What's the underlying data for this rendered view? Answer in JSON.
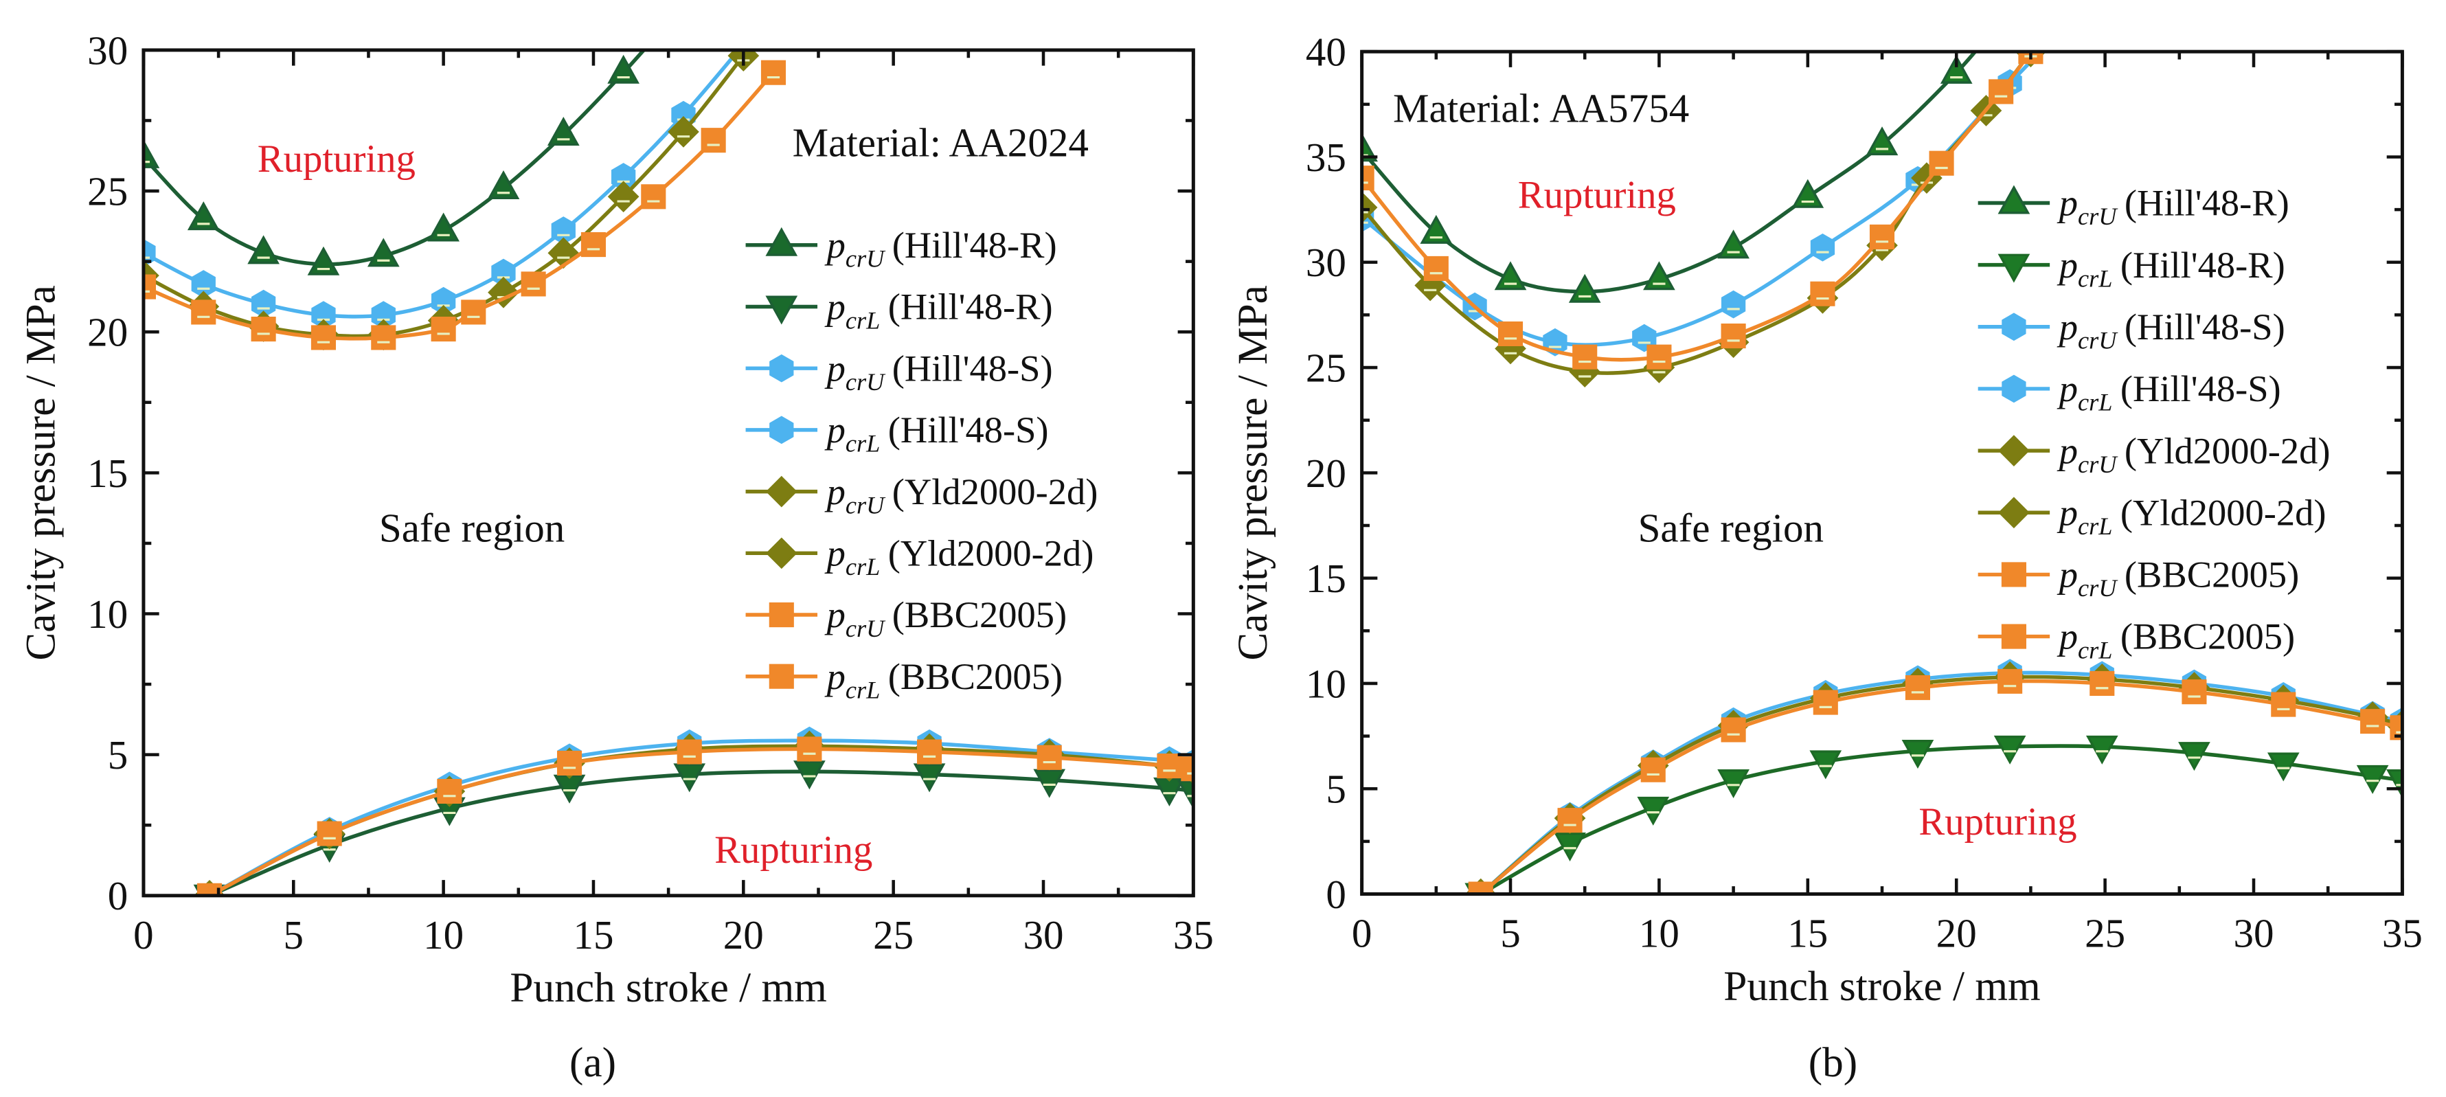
{
  "chart_data": [
    {
      "type": "line",
      "panel_label": "(a)",
      "material_note": "Material: AA2024",
      "xlabel": "Punch stroke / mm",
      "ylabel": "Cavity pressure / MPa",
      "xlim": [
        0,
        35
      ],
      "ylim": [
        0,
        30
      ],
      "xticks": [
        0,
        5,
        10,
        15,
        20,
        25,
        30,
        35
      ],
      "yticks": [
        0,
        5,
        10,
        15,
        20,
        25,
        30
      ],
      "annotations": [
        "Rupturing",
        "Safe region",
        "Rupturing"
      ],
      "legend_position": "right",
      "series": [
        {
          "name": "Hill'48-R upper",
          "sym": "p",
          "sub": "crU",
          "label": "(Hill'48-R)",
          "color": "#1d5e34",
          "fill": "#1a6a2c",
          "marker": "tri-up",
          "x": [
            0,
            2,
            4,
            6,
            8,
            10,
            12,
            14,
            16,
            18
          ],
          "y": [
            26.2,
            24.0,
            22.8,
            22.4,
            22.7,
            23.6,
            25.1,
            27.0,
            29.2,
            31.6
          ]
        },
        {
          "name": "Hill'48-R lower",
          "sym": "p",
          "sub": "crL",
          "label": "(Hill'48-R)",
          "color": "#1d5e34",
          "fill": "#1a6a2c",
          "marker": "tri-down",
          "x": [
            2.2,
            6.2,
            10.2,
            14.2,
            18.2,
            22.2,
            26.2,
            30.2,
            34.2,
            35
          ],
          "y": [
            0,
            1.8,
            3.1,
            3.9,
            4.3,
            4.4,
            4.3,
            4.1,
            3.8,
            3.7
          ]
        },
        {
          "name": "Hill'48-S upper",
          "sym": "p",
          "sub": "crU",
          "label": "(Hill'48-S)",
          "color": "#4db3ef",
          "fill": "#4db3ef",
          "marker": "hex",
          "x": [
            0,
            2,
            4,
            6,
            8,
            10,
            12,
            14,
            16,
            18,
            20
          ],
          "y": [
            22.8,
            21.7,
            21.0,
            20.6,
            20.6,
            21.1,
            22.1,
            23.6,
            25.5,
            27.7,
            30.2
          ]
        },
        {
          "name": "Hill'48-S lower",
          "sym": "p",
          "sub": "crL",
          "label": "(Hill'48-S)",
          "color": "#4db3ef",
          "fill": "#4db3ef",
          "marker": "hex",
          "x": [
            2.2,
            6.2,
            10.2,
            14.2,
            18.2,
            22.2,
            26.2,
            30.2,
            34.2,
            35
          ],
          "y": [
            0,
            2.3,
            3.9,
            4.9,
            5.4,
            5.5,
            5.4,
            5.1,
            4.8,
            4.7
          ]
        },
        {
          "name": "Yld2000-2d upper",
          "sym": "p",
          "sub": "crU",
          "label": "(Yld2000-2d)",
          "color": "#7d7d12",
          "fill": "#7d7d12",
          "marker": "diamond",
          "x": [
            0,
            2,
            4,
            6,
            8,
            10,
            12,
            14,
            16,
            18,
            20
          ],
          "y": [
            22.0,
            20.9,
            20.2,
            19.9,
            19.9,
            20.4,
            21.4,
            22.8,
            24.8,
            27.1,
            29.8
          ]
        },
        {
          "name": "Yld2000-2d lower",
          "sym": "p",
          "sub": "crL",
          "label": "(Yld2000-2d)",
          "color": "#7d7d12",
          "fill": "#7d7d12",
          "marker": "diamond",
          "x": [
            2.2,
            6.2,
            10.2,
            14.2,
            18.2,
            22.2,
            26.2,
            30.2,
            34.2,
            35
          ],
          "y": [
            0,
            2.2,
            3.7,
            4.7,
            5.2,
            5.3,
            5.2,
            5.0,
            4.6,
            4.5
          ]
        },
        {
          "name": "BBC2005 upper",
          "sym": "p",
          "sub": "crU",
          "label": "(BBC2005)",
          "color": "#f0882a",
          "fill": "#f0882a",
          "marker": "square",
          "x": [
            0,
            2,
            4,
            6,
            8,
            10,
            11,
            13,
            15,
            17,
            19,
            21
          ],
          "y": [
            21.6,
            20.7,
            20.1,
            19.8,
            19.8,
            20.1,
            20.7,
            21.7,
            23.1,
            24.8,
            26.8,
            29.2
          ]
        },
        {
          "name": "BBC2005 lower",
          "sym": "p",
          "sub": "crL",
          "label": "(BBC2005)",
          "color": "#f0882a",
          "fill": "#f0882a",
          "marker": "square",
          "x": [
            2.2,
            6.2,
            10.2,
            14.2,
            18.2,
            22.2,
            26.2,
            30.2,
            34.2,
            35
          ],
          "y": [
            0,
            2.2,
            3.7,
            4.7,
            5.1,
            5.2,
            5.1,
            4.9,
            4.6,
            4.5
          ]
        }
      ]
    },
    {
      "type": "line",
      "panel_label": "(b)",
      "material_note": "Material: AA5754",
      "xlabel": "Punch stroke / mm",
      "ylabel": "Cavity pressure / MPa",
      "xlim": [
        0,
        35
      ],
      "ylim": [
        0,
        40
      ],
      "xticks": [
        0,
        5,
        10,
        15,
        20,
        25,
        30,
        35
      ],
      "yticks": [
        0,
        5,
        10,
        15,
        20,
        25,
        30,
        35,
        40
      ],
      "annotations": [
        "Rupturing",
        "Safe region",
        "Rupturing"
      ],
      "legend_position": "right",
      "series": [
        {
          "name": "Hill'48-R upper",
          "sym": "p",
          "sub": "crU",
          "label": "(Hill'48-R)",
          "color": "#1d5e34",
          "fill": "#1d7a26",
          "marker": "tri-up",
          "x": [
            0,
            2.5,
            5,
            7.5,
            10,
            12.5,
            15,
            17.5,
            20,
            21.5
          ],
          "y": [
            35.3,
            31.4,
            29.2,
            28.6,
            29.2,
            30.7,
            33.1,
            35.6,
            39.0,
            41.5
          ]
        },
        {
          "name": "Hill'48-R lower",
          "sym": "p",
          "sub": "crL",
          "label": "(Hill'48-R)",
          "color": "#1d6a26",
          "fill": "#1d7a26",
          "marker": "tri-down",
          "x": [
            4,
            7,
            9.8,
            12.5,
            15.6,
            18.7,
            21.8,
            24.9,
            28,
            31,
            34,
            35
          ],
          "y": [
            0,
            2.4,
            4.1,
            5.4,
            6.3,
            6.8,
            7.0,
            7.0,
            6.7,
            6.2,
            5.6,
            5.4
          ]
        },
        {
          "name": "Hill'48-S upper",
          "sym": "p",
          "sub": "crU",
          "label": "(Hill'48-S)",
          "color": "#4db3ef",
          "fill": "#4db3ef",
          "marker": "hex",
          "x": [
            0,
            3.8,
            6.5,
            9.5,
            12.5,
            15.5,
            18.7,
            21.8,
            23.5
          ],
          "y": [
            32.1,
            27.9,
            26.2,
            26.4,
            28.0,
            30.7,
            33.9,
            38.5,
            41.0
          ]
        },
        {
          "name": "Hill'48-S lower",
          "sym": "p",
          "sub": "crL",
          "label": "(Hill'48-S)",
          "color": "#4db3ef",
          "fill": "#4db3ef",
          "marker": "hex",
          "x": [
            4,
            7,
            9.8,
            12.5,
            15.6,
            18.7,
            21.8,
            24.9,
            28,
            31,
            34,
            35
          ],
          "y": [
            0,
            3.7,
            6.2,
            8.2,
            9.5,
            10.2,
            10.5,
            10.4,
            10.0,
            9.4,
            8.5,
            8.2
          ]
        },
        {
          "name": "Yld2000-2d upper",
          "sym": "p",
          "sub": "crU",
          "label": "(Yld2000-2d)",
          "color": "#7d7d12",
          "fill": "#7d7d12",
          "marker": "diamond",
          "x": [
            0,
            2.3,
            5,
            7.5,
            10,
            12.5,
            15.5,
            17.5,
            19,
            21,
            22.5
          ],
          "y": [
            32.6,
            28.9,
            25.9,
            24.8,
            25.0,
            26.2,
            28.3,
            30.8,
            34.0,
            37.2,
            40.0
          ]
        },
        {
          "name": "Yld2000-2d lower",
          "sym": "p",
          "sub": "crL",
          "label": "(Yld2000-2d)",
          "color": "#7d7d12",
          "fill": "#7d7d12",
          "marker": "diamond",
          "x": [
            4,
            7,
            9.8,
            12.5,
            15.6,
            18.7,
            21.8,
            24.9,
            28,
            31,
            34,
            35
          ],
          "y": [
            0,
            3.6,
            6.1,
            8.0,
            9.3,
            10.0,
            10.3,
            10.2,
            9.8,
            9.2,
            8.4,
            8.0
          ]
        },
        {
          "name": "BBC2005 upper",
          "sym": "p",
          "sub": "crU",
          "label": "(BBC2005)",
          "color": "#f0882a",
          "fill": "#f0882a",
          "marker": "square",
          "x": [
            0,
            2.5,
            5,
            7.5,
            10,
            12.5,
            15.5,
            17.5,
            19.5,
            21.5,
            22.5
          ],
          "y": [
            34.0,
            29.7,
            26.6,
            25.5,
            25.5,
            26.5,
            28.5,
            31.2,
            34.7,
            38.1,
            40.0
          ]
        },
        {
          "name": "BBC2005 lower",
          "sym": "p",
          "sub": "crL",
          "label": "(BBC2005)",
          "color": "#f0882a",
          "fill": "#f0882a",
          "marker": "square",
          "x": [
            4,
            7,
            9.8,
            12.5,
            15.6,
            18.7,
            21.8,
            24.9,
            28,
            31,
            34,
            35
          ],
          "y": [
            0,
            3.5,
            5.9,
            7.8,
            9.1,
            9.8,
            10.1,
            10.0,
            9.6,
            9.0,
            8.2,
            7.9
          ]
        }
      ]
    }
  ]
}
